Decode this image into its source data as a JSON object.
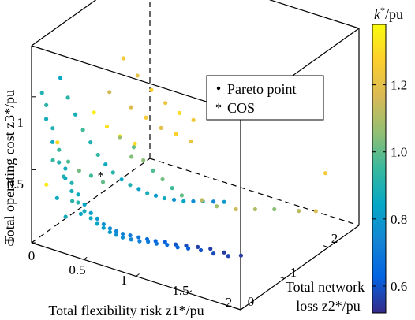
{
  "chart_data": {
    "type": "scatter",
    "projection": "3d",
    "title": "",
    "xlabel": "Total flexibility risk z1*/pu",
    "ylabel_lines": [
      "Total network",
      "loss z2*/pu"
    ],
    "zlabel": "Total operating cost z3*/pu",
    "xlim": [
      0,
      2
    ],
    "ylim": [
      0,
      2.7
    ],
    "zlim": [
      0,
      1.35
    ],
    "x_ticks": [
      "0",
      "0.5",
      "1",
      "1.5",
      "2"
    ],
    "y_ticks": [
      "0",
      "1",
      "2"
    ],
    "z_ticks": [
      "0",
      "0.5",
      "1"
    ],
    "grid": false,
    "box": true,
    "colorbar": {
      "label": "k*/pu",
      "range": [
        0.52,
        1.38
      ],
      "ticks": [
        "0.6",
        "0.8",
        "1.0",
        "1.2"
      ],
      "colormap": "parula",
      "stops": [
        "#352a87",
        "#0363e1",
        "#1485d4",
        "#06a7c6",
        "#38b99e",
        "#92bf73",
        "#d9ba56",
        "#fcce2e",
        "#f9fb0e"
      ]
    },
    "legend": {
      "position": "top-right",
      "entries": [
        {
          "label": "Pareto point",
          "marker": "dot",
          "color": "#000000"
        },
        {
          "label": "COS",
          "marker": "asterisk",
          "color": "#ff0000"
        }
      ]
    },
    "series": [
      {
        "name": "Pareto point",
        "columns": [
          "x",
          "y",
          "z",
          "k"
        ],
        "points": [
          [
            0.1,
            0.0,
            1.05,
            0.9
          ],
          [
            0.12,
            0.05,
            0.96,
            0.92
          ],
          [
            0.14,
            0.0,
            0.88,
            0.88
          ],
          [
            0.16,
            0.1,
            0.8,
            0.9
          ],
          [
            0.18,
            0.05,
            0.72,
            0.86
          ],
          [
            0.2,
            0.15,
            0.65,
            0.95
          ],
          [
            0.22,
            0.1,
            0.58,
            0.9
          ],
          [
            0.24,
            0.2,
            0.52,
            0.88
          ],
          [
            0.26,
            0.15,
            0.47,
            0.85
          ],
          [
            0.28,
            0.25,
            0.42,
            0.9
          ],
          [
            0.3,
            0.2,
            0.38,
            0.88
          ],
          [
            0.32,
            0.3,
            0.34,
            0.86
          ],
          [
            0.34,
            0.25,
            0.3,
            0.92
          ],
          [
            0.36,
            0.35,
            0.27,
            0.84
          ],
          [
            0.38,
            0.3,
            0.24,
            0.88
          ],
          [
            0.4,
            0.4,
            0.21,
            0.82
          ],
          [
            0.42,
            0.35,
            0.19,
            0.86
          ],
          [
            0.44,
            0.45,
            0.17,
            0.8
          ],
          [
            0.46,
            0.4,
            0.15,
            0.84
          ],
          [
            0.48,
            0.5,
            0.13,
            0.78
          ],
          [
            0.5,
            0.45,
            0.12,
            0.82
          ],
          [
            0.52,
            0.55,
            0.1,
            0.76
          ],
          [
            0.54,
            0.5,
            0.09,
            0.8
          ],
          [
            0.56,
            0.6,
            0.08,
            0.74
          ],
          [
            0.58,
            0.55,
            0.07,
            0.78
          ],
          [
            0.6,
            0.65,
            0.06,
            0.72
          ],
          [
            0.62,
            0.6,
            0.05,
            0.76
          ],
          [
            0.65,
            0.7,
            0.05,
            0.7
          ],
          [
            0.68,
            0.65,
            0.04,
            0.74
          ],
          [
            0.71,
            0.75,
            0.04,
            0.68
          ],
          [
            0.74,
            0.7,
            0.03,
            0.72
          ],
          [
            0.77,
            0.8,
            0.03,
            0.66
          ],
          [
            0.8,
            0.75,
            0.03,
            0.7
          ],
          [
            0.83,
            0.85,
            0.02,
            0.64
          ],
          [
            0.86,
            0.8,
            0.02,
            0.68
          ],
          [
            0.9,
            0.9,
            0.02,
            0.62
          ],
          [
            0.94,
            0.85,
            0.02,
            0.66
          ],
          [
            0.98,
            0.95,
            0.01,
            0.6
          ],
          [
            1.02,
            0.9,
            0.01,
            0.64
          ],
          [
            1.06,
            1.0,
            0.01,
            0.58
          ],
          [
            1.1,
            0.95,
            0.01,
            0.62
          ],
          [
            1.15,
            1.05,
            0.01,
            0.56
          ],
          [
            1.2,
            1.0,
            0.01,
            0.6
          ],
          [
            1.25,
            1.1,
            0.01,
            0.56
          ],
          [
            1.3,
            1.05,
            0.0,
            0.58
          ],
          [
            1.36,
            1.15,
            0.0,
            0.55
          ],
          [
            1.42,
            1.1,
            0.0,
            0.57
          ],
          [
            1.5,
            1.2,
            0.0,
            0.55
          ],
          [
            0.15,
            0.3,
            1.1,
            0.85
          ],
          [
            0.18,
            0.4,
            0.95,
            0.92
          ],
          [
            0.21,
            0.5,
            0.82,
            0.88
          ],
          [
            0.24,
            0.6,
            0.7,
            0.96
          ],
          [
            0.27,
            0.7,
            0.6,
            0.9
          ],
          [
            0.3,
            0.8,
            0.5,
            0.94
          ],
          [
            0.33,
            0.9,
            0.42,
            0.86
          ],
          [
            0.36,
            1.0,
            0.35,
            0.92
          ],
          [
            0.4,
            1.1,
            0.29,
            0.84
          ],
          [
            0.44,
            1.2,
            0.24,
            0.9
          ],
          [
            0.48,
            1.3,
            0.2,
            0.82
          ],
          [
            0.52,
            1.4,
            0.16,
            0.88
          ],
          [
            0.56,
            1.5,
            0.13,
            0.8
          ],
          [
            0.6,
            1.6,
            0.1,
            0.86
          ],
          [
            0.65,
            1.7,
            0.08,
            0.78
          ],
          [
            0.7,
            1.8,
            0.06,
            0.84
          ],
          [
            0.75,
            1.9,
            0.05,
            0.76
          ],
          [
            0.8,
            2.0,
            0.04,
            0.82
          ],
          [
            0.86,
            2.1,
            0.03,
            0.74
          ],
          [
            0.92,
            2.2,
            0.02,
            0.8
          ],
          [
            0.25,
            1.5,
            1.0,
            1.25
          ],
          [
            0.3,
            1.7,
            0.85,
            1.2
          ],
          [
            0.35,
            1.9,
            0.72,
            1.28
          ],
          [
            0.4,
            2.1,
            0.6,
            1.22
          ],
          [
            0.45,
            2.3,
            0.5,
            1.3
          ],
          [
            0.5,
            2.5,
            0.42,
            1.24
          ],
          [
            0.2,
            1.3,
            0.8,
            1.15
          ],
          [
            0.28,
            1.6,
            0.65,
            1.18
          ],
          [
            0.34,
            1.8,
            0.55,
            1.26
          ],
          [
            0.4,
            2.0,
            0.45,
            1.2
          ],
          [
            0.46,
            2.2,
            0.38,
            1.28
          ],
          [
            0.52,
            2.4,
            0.3,
            1.22
          ],
          [
            0.22,
            0.9,
            0.75,
            1.35
          ],
          [
            0.26,
            1.1,
            0.62,
            1.32
          ],
          [
            0.3,
            1.3,
            0.52,
            1.36
          ],
          [
            0.36,
            1.5,
            0.44,
            1.3
          ],
          [
            0.6,
            0.9,
            0.6,
            1.0
          ],
          [
            0.65,
            1.0,
            0.5,
            1.05
          ],
          [
            0.7,
            1.1,
            0.42,
            0.98
          ],
          [
            0.75,
            1.2,
            0.35,
            1.02
          ],
          [
            0.8,
            1.3,
            0.28,
            0.96
          ],
          [
            0.85,
            1.4,
            0.22,
            1.0
          ],
          [
            0.55,
            0.7,
            0.7,
            1.08
          ],
          [
            0.62,
            0.8,
            0.56,
            1.04
          ],
          [
            1.0,
            1.5,
            0.2,
            1.12
          ],
          [
            1.1,
            1.6,
            0.16,
            1.08
          ],
          [
            1.2,
            1.8,
            0.12,
            1.15
          ],
          [
            1.3,
            2.0,
            0.1,
            1.1
          ],
          [
            1.4,
            2.2,
            0.08,
            1.05
          ],
          [
            1.55,
            2.4,
            0.06,
            1.12
          ],
          [
            1.65,
            2.55,
            0.05,
            1.18
          ],
          [
            1.7,
            2.65,
            0.3,
            1.25
          ],
          [
            0.12,
            0.2,
            0.55,
            0.94
          ],
          [
            0.14,
            0.4,
            0.4,
            0.9
          ],
          [
            0.16,
            0.2,
            0.3,
            0.86
          ],
          [
            0.18,
            0.5,
            0.22,
            0.92
          ],
          [
            0.2,
            0.3,
            0.16,
            0.88
          ],
          [
            0.22,
            0.6,
            0.12,
            0.84
          ],
          [
            0.1,
            0.6,
            0.45,
            0.98
          ],
          [
            0.12,
            0.8,
            0.35,
            1.02
          ],
          [
            0.15,
            1.0,
            0.28,
            0.96
          ],
          [
            0.18,
            1.2,
            0.2,
            1.0
          ],
          [
            0.08,
            0.4,
            0.62,
            1.3
          ],
          [
            0.1,
            0.1,
            0.4,
            1.34
          ]
        ]
      },
      {
        "name": "COS",
        "columns": [
          "x",
          "y",
          "z"
        ],
        "points": [
          [
            0.4,
            0.62,
            0.42
          ]
        ]
      }
    ]
  }
}
